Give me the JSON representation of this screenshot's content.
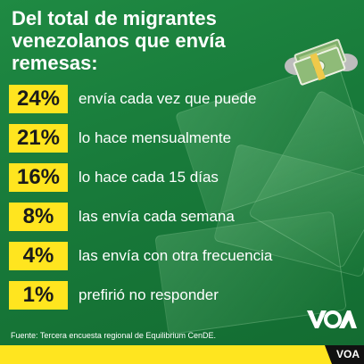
{
  "title": "Del total de migrantes venezolanos que envía remesas:",
  "chart_data": {
    "type": "table",
    "rows": [
      {
        "value": 24,
        "display": "24%",
        "label": "envía cada vez que puede"
      },
      {
        "value": 21,
        "display": "21%",
        "label": "lo hace mensualmente"
      },
      {
        "value": 16,
        "display": "16%",
        "label": "lo hace cada 15 días"
      },
      {
        "value": 8,
        "display": "8%",
        "label": "las envía cada semana"
      },
      {
        "value": 4,
        "display": "4%",
        "label": "las envía con otra frecuencia"
      },
      {
        "value": 1,
        "display": "1%",
        "label": "prefirió no responder"
      }
    ]
  },
  "source": "Fuente: Tercera encuesta regional de Equilibrium CenDE.",
  "brand": {
    "name": "VOA",
    "tab_label": "VOA",
    "accent": "#ffe51f",
    "background": "#1a823f"
  },
  "icons": {
    "illustration": "money-bills-icon",
    "logo": "voa-logo"
  }
}
